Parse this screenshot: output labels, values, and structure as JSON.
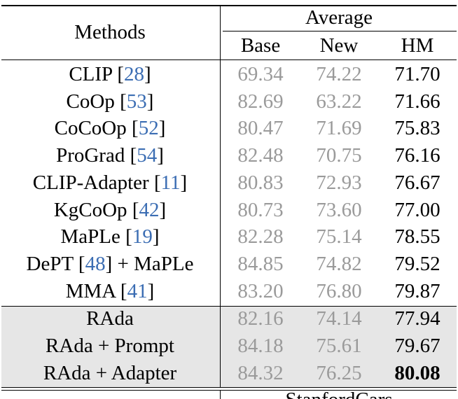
{
  "header": {
    "methods_label": "Methods",
    "group_label": "Average",
    "columns": [
      "Base",
      "New",
      "HM"
    ]
  },
  "rows": [
    {
      "method": "CLIP",
      "cite": "28",
      "suffix": "",
      "base": "69.34",
      "new": "74.22",
      "hm": "71.70"
    },
    {
      "method": "CoOp",
      "cite": "53",
      "suffix": "",
      "base": "82.69",
      "new": "63.22",
      "hm": "71.66"
    },
    {
      "method": "CoCoOp",
      "cite": "52",
      "suffix": "",
      "base": "80.47",
      "new": "71.69",
      "hm": "75.83"
    },
    {
      "method": "ProGrad",
      "cite": "54",
      "suffix": "",
      "base": "82.48",
      "new": "70.75",
      "hm": "76.16"
    },
    {
      "method": "CLIP-Adapter",
      "cite": "11",
      "suffix": "",
      "base": "80.83",
      "new": "72.93",
      "hm": "76.67"
    },
    {
      "method": "KgCoOp",
      "cite": "42",
      "suffix": "",
      "base": "80.73",
      "new": "73.60",
      "hm": "77.00"
    },
    {
      "method": "MaPLe",
      "cite": "19",
      "suffix": "",
      "base": "82.28",
      "new": "75.14",
      "hm": "78.55"
    },
    {
      "method": "DePT",
      "cite": "48",
      "suffix": "+ MaPLe",
      "base": "84.85",
      "new": "74.82",
      "hm": "79.52"
    },
    {
      "method": "MMA",
      "cite": "41",
      "suffix": "",
      "base": "83.20",
      "new": "76.80",
      "hm": "79.87"
    },
    {
      "method": "RAda",
      "cite": "",
      "suffix": "",
      "base": "82.16",
      "new": "74.14",
      "hm": "77.94"
    },
    {
      "method": "RAda + Prompt",
      "cite": "",
      "suffix": "",
      "base": "84.18",
      "new": "75.61",
      "hm": "79.67"
    },
    {
      "method": "RAda + Adapter",
      "cite": "",
      "suffix": "",
      "base": "84.32",
      "new": "76.25",
      "hm": "80.08"
    }
  ],
  "next_section_label": "StanfordCars"
}
